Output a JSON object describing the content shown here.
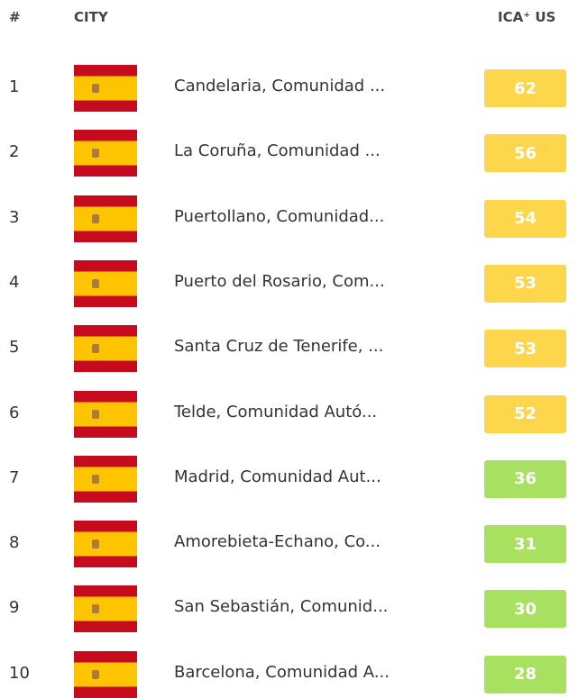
{
  "header": {
    "rank": "#",
    "city": "CITY",
    "aqi": "ICA⁺ US"
  },
  "rows": [
    {
      "rank": "1",
      "city": "Candelaria, Comunidad ...",
      "aqi": "62",
      "color": "#fdd64b"
    },
    {
      "rank": "2",
      "city": "La Coruña, Comunidad ...",
      "aqi": "56",
      "color": "#fdd64b"
    },
    {
      "rank": "3",
      "city": "Puertollano, Comunidad...",
      "aqi": "54",
      "color": "#fdd64b"
    },
    {
      "rank": "4",
      "city": "Puerto del Rosario, Com...",
      "aqi": "53",
      "color": "#fdd64b"
    },
    {
      "rank": "5",
      "city": "Santa Cruz de Tenerife, ...",
      "aqi": "53",
      "color": "#fdd64b"
    },
    {
      "rank": "6",
      "city": "Telde, Comunidad Autó...",
      "aqi": "52",
      "color": "#fdd64b"
    },
    {
      "rank": "7",
      "city": "Madrid, Comunidad Aut...",
      "aqi": "36",
      "color": "#a8e05f"
    },
    {
      "rank": "8",
      "city": "Amorebieta-Echano, Co...",
      "aqi": "31",
      "color": "#a8e05f"
    },
    {
      "rank": "9",
      "city": "San Sebastián, Comunid...",
      "aqi": "30",
      "color": "#a8e05f"
    },
    {
      "rank": "10",
      "city": "Barcelona, Comunidad A...",
      "aqi": "28",
      "color": "#a8e05f"
    }
  ]
}
